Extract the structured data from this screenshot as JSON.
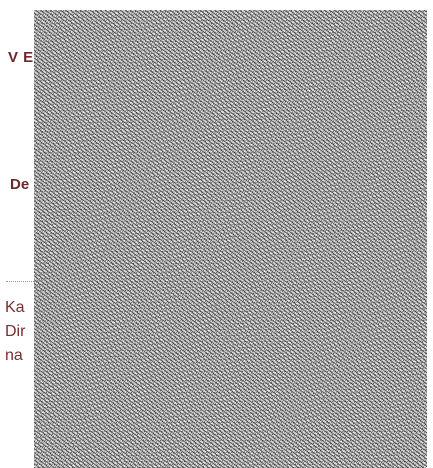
{
  "content": {
    "heading_top": "V E",
    "heading_mid": "De",
    "body_lines": [
      "Ka",
      "Dir",
      "na"
    ]
  },
  "colors": {
    "heading": "#6b2a2a",
    "body_text": "#7a2e2e",
    "background": "#ffffff",
    "overlay_noise": "#bcbcbc"
  }
}
